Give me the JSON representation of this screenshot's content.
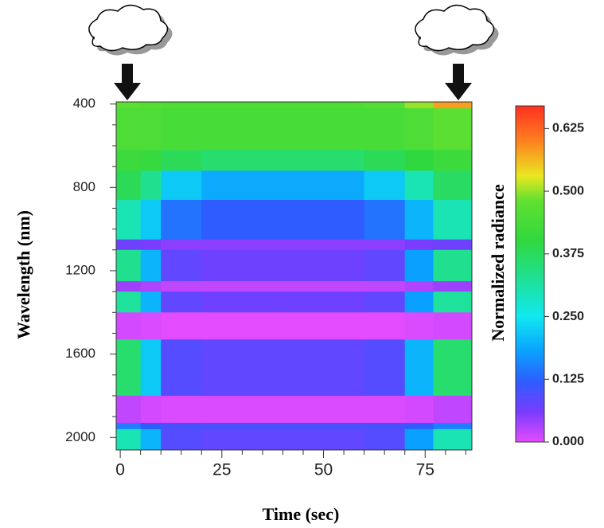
{
  "chart_data": {
    "type": "heatmap",
    "xlabel": "Time (sec)",
    "ylabel": "Wavelength (nm)",
    "colorbar_label": "Normalized radiance",
    "x_edges": [
      -1,
      5,
      10,
      20,
      40,
      60,
      70,
      77,
      86.5
    ],
    "y_edges": [
      390,
      420,
      620,
      720,
      860,
      1050,
      1100,
      1250,
      1300,
      1400,
      1530,
      1800,
      1930,
      1960,
      2060
    ],
    "z": [
      [
        0.47,
        0.46,
        0.45,
        0.45,
        0.45,
        0.46,
        0.5,
        0.58
      ],
      [
        0.45,
        0.45,
        0.44,
        0.44,
        0.44,
        0.44,
        0.45,
        0.47
      ],
      [
        0.42,
        0.41,
        0.38,
        0.36,
        0.36,
        0.38,
        0.4,
        0.42
      ],
      [
        0.38,
        0.33,
        0.22,
        0.19,
        0.19,
        0.22,
        0.3,
        0.37
      ],
      [
        0.3,
        0.22,
        0.14,
        0.12,
        0.12,
        0.14,
        0.2,
        0.3
      ],
      [
        0.07,
        0.06,
        0.05,
        0.05,
        0.05,
        0.05,
        0.06,
        0.07
      ],
      [
        0.33,
        0.2,
        0.08,
        0.07,
        0.07,
        0.08,
        0.18,
        0.33
      ],
      [
        0.04,
        0.03,
        0.02,
        0.02,
        0.02,
        0.02,
        0.03,
        0.04
      ],
      [
        0.32,
        0.2,
        0.08,
        0.07,
        0.07,
        0.08,
        0.18,
        0.32
      ],
      [
        0.01,
        0.005,
        0,
        0,
        0,
        0,
        0.005,
        0.01
      ],
      [
        0.36,
        0.22,
        0.09,
        0.08,
        0.08,
        0.09,
        0.2,
        0.36
      ],
      [
        0.02,
        0.01,
        0.005,
        0.005,
        0.005,
        0.005,
        0.01,
        0.02
      ],
      [
        0.15,
        0.12,
        0.1,
        0.1,
        0.1,
        0.1,
        0.12,
        0.15
      ],
      [
        0.3,
        0.2,
        0.09,
        0.08,
        0.08,
        0.09,
        0.18,
        0.3
      ]
    ],
    "xlim": [
      -1,
      86.5
    ],
    "xticks": [
      0,
      25,
      50,
      75
    ],
    "xminorticks": [
      5,
      10,
      15,
      20,
      30,
      35,
      40,
      45,
      55,
      60,
      65,
      70,
      80,
      85
    ],
    "ylim": [
      2060,
      390
    ],
    "yticks": [
      400,
      800,
      1200,
      1600,
      2000
    ],
    "yminorticks": [
      500,
      600,
      700,
      900,
      1000,
      1100,
      1300,
      1400,
      1500,
      1700,
      1800,
      1900
    ],
    "vlim": [
      0,
      0.67
    ],
    "vticks": [
      {
        "value": 0,
        "label": "0.000"
      },
      {
        "value": 0.125,
        "label": "0.125"
      },
      {
        "value": 0.25,
        "label": "0.250"
      },
      {
        "value": 0.375,
        "label": "0.375"
      },
      {
        "value": 0.5,
        "label": "0.500"
      },
      {
        "value": 0.625,
        "label": "0.625"
      }
    ],
    "colorscale": [
      [
        0,
        "#e34bff"
      ],
      [
        0.06,
        "#7a3cff"
      ],
      [
        0.12,
        "#2f5cff"
      ],
      [
        0.18,
        "#0aa0ff"
      ],
      [
        0.25,
        "#10e8f0"
      ],
      [
        0.33,
        "#20e090"
      ],
      [
        0.4,
        "#30d840"
      ],
      [
        0.48,
        "#60e030"
      ],
      [
        0.53,
        "#e8e820"
      ],
      [
        0.6,
        "#ff8020"
      ],
      [
        0.67,
        "#ff3020"
      ]
    ]
  }
}
